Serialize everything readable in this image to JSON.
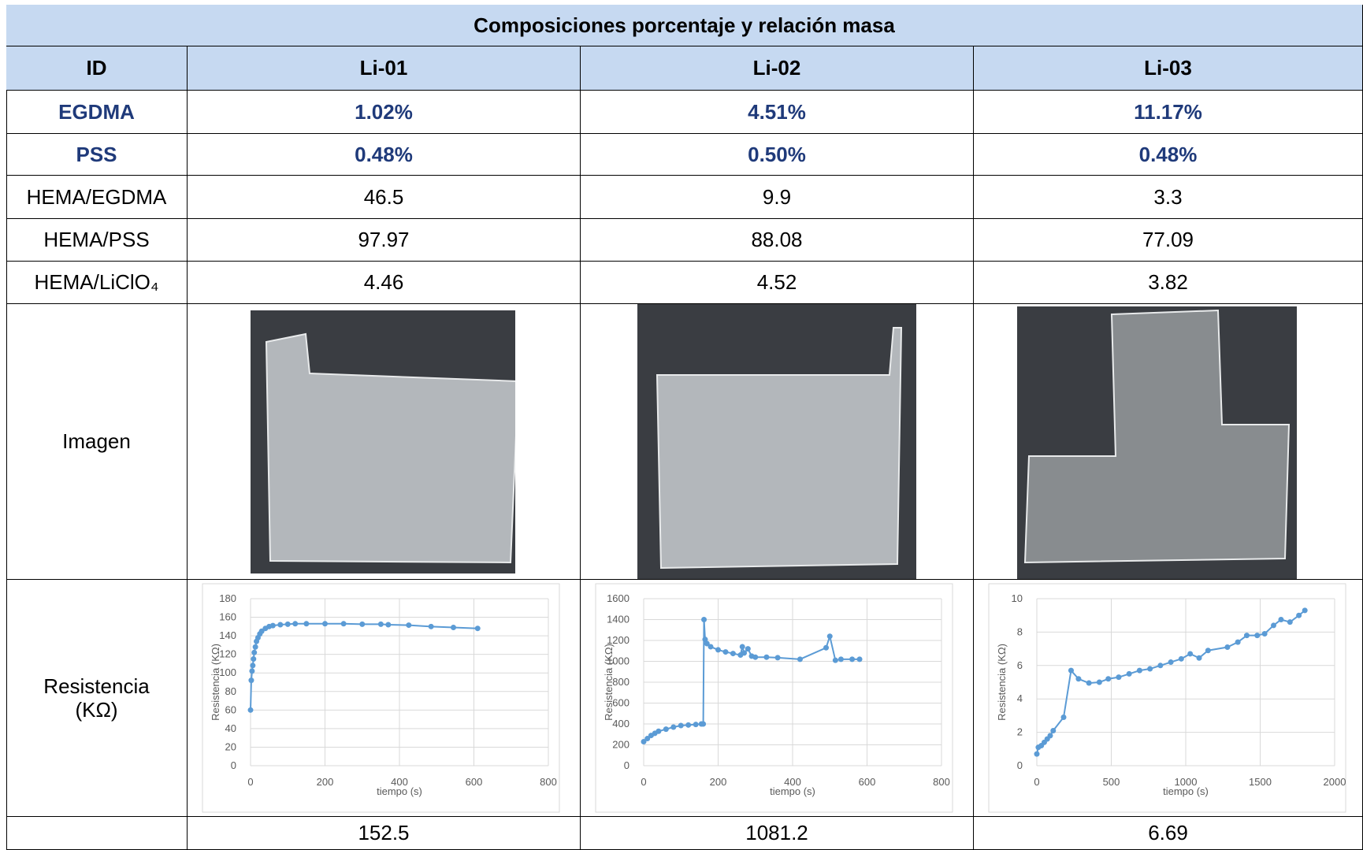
{
  "table": {
    "title": "Composiciones porcentaje y relación masa",
    "header": [
      "ID",
      "Li-01",
      "Li-02",
      "Li-03"
    ],
    "rows": [
      [
        "EGDMA",
        "1.02%",
        "4.51%",
        "11.17%"
      ],
      [
        "PSS",
        "0.48%",
        "0.50%",
        "0.48%"
      ],
      [
        "HEMA/EGDMA",
        "46.5",
        "9.9",
        "3.3"
      ],
      [
        "HEMA/PSS",
        "97.97",
        "88.08",
        "77.09"
      ],
      [
        "HEMA/LiClO₄",
        "4.46",
        "4.52",
        "3.82"
      ]
    ],
    "image_row": {
      "label": "Imagen"
    },
    "resistance_row": {
      "label": "Resistencia (KΩ)",
      "charts": [
        {
          "type": "line",
          "y_label": "Resistencia (KΩ)",
          "x_label": "tiempo (s)",
          "color": "#5b9bd5",
          "grid": true,
          "xlim": [
            0,
            800
          ],
          "xticks": [
            0,
            200,
            400,
            600,
            800
          ],
          "ylim": [
            0,
            180
          ],
          "yticks": [
            0,
            20,
            40,
            60,
            80,
            100,
            120,
            140,
            160,
            180
          ],
          "x": [
            0,
            2,
            4,
            6,
            8,
            10,
            13,
            16,
            20,
            25,
            30,
            40,
            50,
            60,
            80,
            100,
            120,
            150,
            200,
            250,
            300,
            350,
            370,
            425,
            485,
            545,
            610
          ],
          "values": [
            60,
            92,
            102,
            108,
            115,
            122,
            128,
            134,
            138,
            142,
            145,
            148,
            150,
            151,
            152,
            152.5,
            153,
            153,
            153,
            153,
            152.5,
            152.5,
            152,
            151.5,
            150,
            149,
            148
          ]
        },
        {
          "type": "line",
          "y_label": "Resistencia (KΩ)",
          "x_label": "tiempo (s)",
          "color": "#5b9bd5",
          "grid": true,
          "xlim": [
            0,
            800
          ],
          "xticks": [
            0,
            200,
            400,
            600,
            800
          ],
          "ylim": [
            0,
            1600
          ],
          "yticks": [
            0,
            200,
            400,
            600,
            800,
            1000,
            1200,
            1400,
            1600
          ],
          "x": [
            0,
            10,
            20,
            30,
            40,
            60,
            80,
            100,
            120,
            140,
            155,
            160,
            162,
            165,
            170,
            180,
            200,
            220,
            240,
            260,
            265,
            270,
            280,
            290,
            300,
            330,
            360,
            420,
            490,
            500,
            515,
            530,
            560,
            580
          ],
          "values": [
            230,
            260,
            290,
            310,
            330,
            350,
            370,
            385,
            390,
            395,
            400,
            400,
            1400,
            1210,
            1170,
            1140,
            1110,
            1090,
            1075,
            1060,
            1140,
            1080,
            1120,
            1050,
            1040,
            1040,
            1035,
            1020,
            1130,
            1240,
            1010,
            1020,
            1020,
            1020
          ]
        },
        {
          "type": "line",
          "y_label": "Resistencia (KΩ)",
          "x_label": "tiempo (s)",
          "color": "#5b9bd5",
          "grid": true,
          "xlim": [
            0,
            2000
          ],
          "xticks": [
            0,
            500,
            1000,
            1500,
            2000
          ],
          "ylim": [
            0,
            10
          ],
          "yticks": [
            0,
            2,
            4,
            6,
            8,
            10
          ],
          "x": [
            0,
            10,
            30,
            50,
            70,
            90,
            110,
            180,
            230,
            280,
            350,
            420,
            480,
            550,
            620,
            690,
            760,
            830,
            900,
            970,
            1030,
            1090,
            1150,
            1280,
            1350,
            1410,
            1480,
            1530,
            1590,
            1640,
            1700,
            1760,
            1800
          ],
          "values": [
            0.7,
            1.1,
            1.2,
            1.4,
            1.6,
            1.8,
            2.1,
            2.9,
            5.7,
            5.2,
            4.95,
            5.0,
            5.2,
            5.3,
            5.5,
            5.7,
            5.8,
            6.0,
            6.2,
            6.4,
            6.7,
            6.45,
            6.9,
            7.1,
            7.4,
            7.8,
            7.8,
            7.9,
            8.4,
            8.75,
            8.6,
            9.0,
            9.3
          ]
        }
      ]
    },
    "final_row": [
      "152.5",
      "1081.2",
      "6.69"
    ]
  }
}
